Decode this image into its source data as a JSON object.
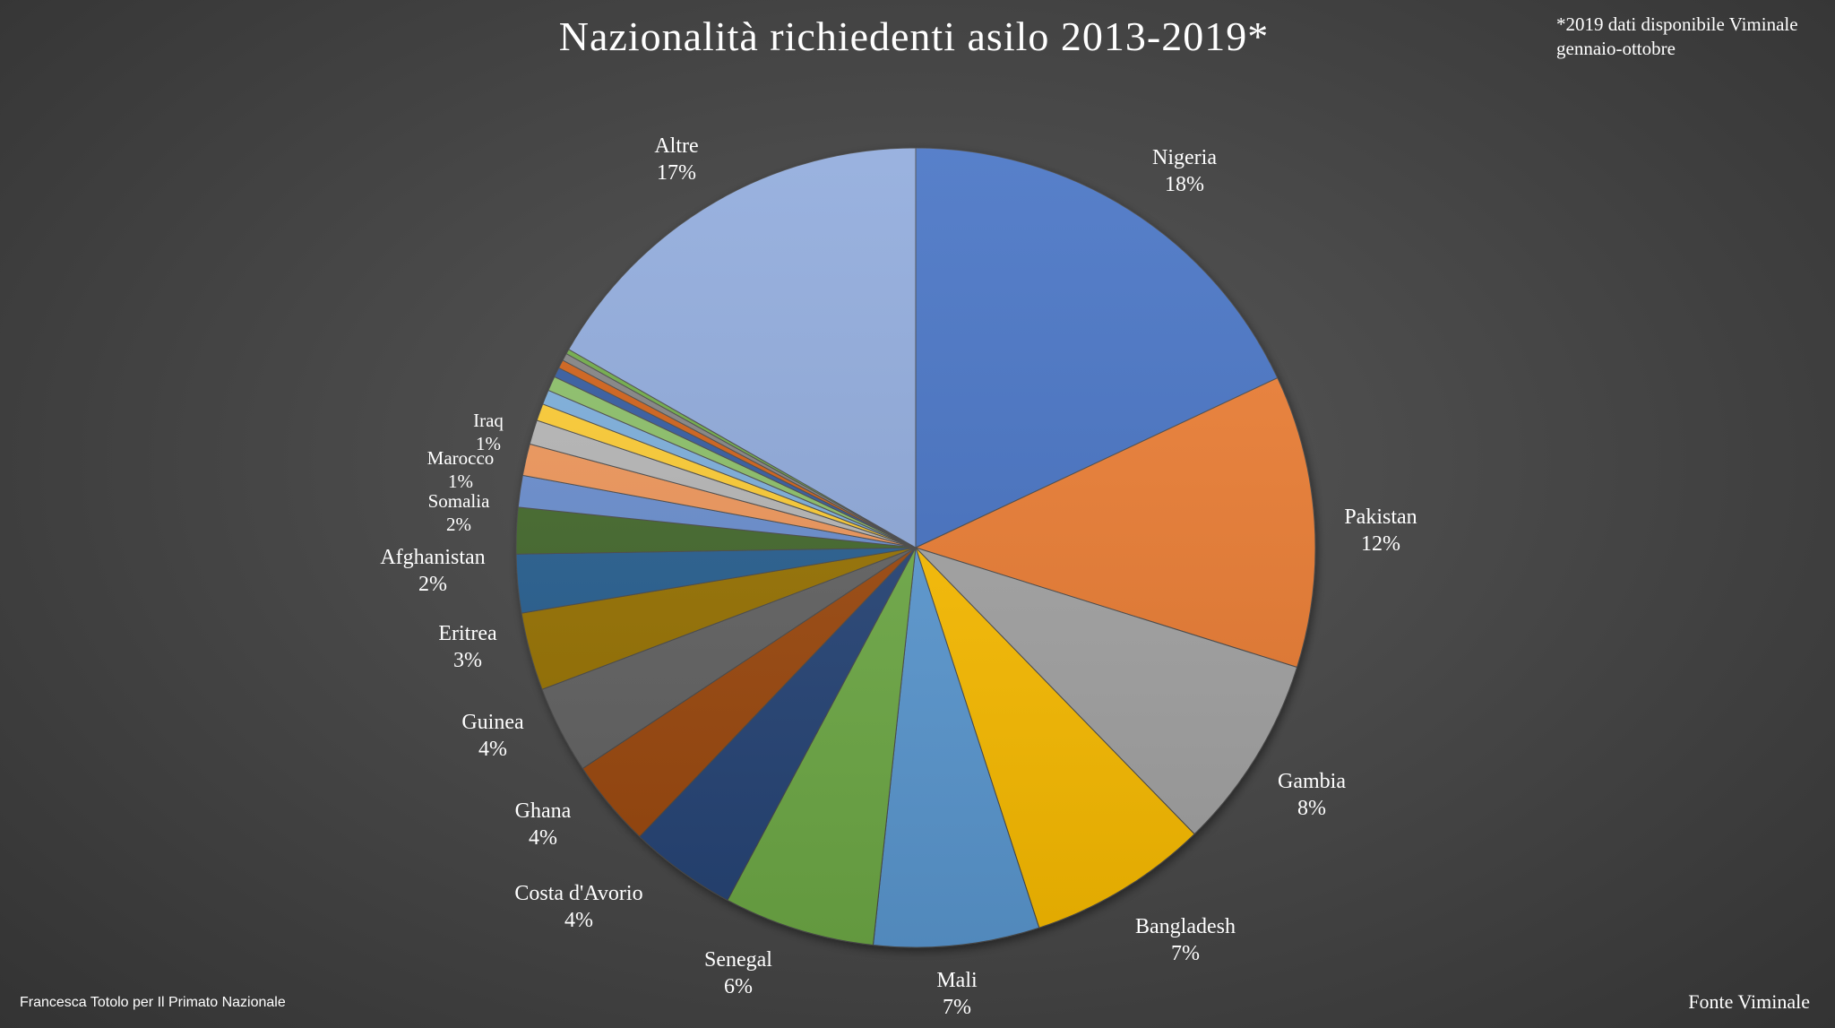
{
  "chart_data": {
    "type": "pie",
    "title": "Nazionalità richiedenti asilo 2013-2019*",
    "note": "*2019 dati disponibile Viminale gennaio-ottobre",
    "author": "Francesca Totolo per Il Primato Nazionale",
    "source": "Fonte Viminale",
    "start_angle_deg": 0,
    "direction": "clockwise",
    "slices": [
      {
        "name": "Nigeria",
        "label": "18%",
        "value": 18.3,
        "color": "#4472C4",
        "labeled": true
      },
      {
        "name": "Pakistan",
        "label": "12%",
        "value": 12.0,
        "color": "#ED7D31",
        "labeled": true
      },
      {
        "name": "Gambia",
        "label": "8%",
        "value": 8.0,
        "color": "#A5A5A5",
        "labeled": true
      },
      {
        "name": "Bangladesh",
        "label": "7%",
        "value": 7.4,
        "color": "#FFC000",
        "labeled": true
      },
      {
        "name": "Mali",
        "label": "7%",
        "value": 6.8,
        "color": "#5B9BD5",
        "labeled": true
      },
      {
        "name": "Senegal",
        "label": "6%",
        "value": 6.2,
        "color": "#70AD47",
        "labeled": true
      },
      {
        "name": "Costa d'Avorio",
        "label": "4%",
        "value": 4.4,
        "color": "#264478",
        "labeled": true
      },
      {
        "name": "Ghana",
        "label": "4%",
        "value": 3.6,
        "color": "#9E480E",
        "labeled": true
      },
      {
        "name": "Guinea",
        "label": "4%",
        "value": 3.6,
        "color": "#636363",
        "labeled": true
      },
      {
        "name": "Eritrea",
        "label": "3%",
        "value": 3.2,
        "color": "#997300",
        "labeled": true
      },
      {
        "name": "Afghanistan",
        "label": "2%",
        "value": 2.4,
        "color": "#255E91",
        "labeled": true
      },
      {
        "name": "Somalia",
        "label": "2%",
        "value": 1.9,
        "color": "#43682B",
        "labeled": true
      },
      {
        "name": "Marocco",
        "label": "1%",
        "value": 1.3,
        "color": "#698ED0",
        "labeled": true
      },
      {
        "name": "Iraq",
        "label": "1%",
        "value": 1.3,
        "color": "#F1975A",
        "labeled": true
      },
      {
        "name": "",
        "label": "",
        "value": 1.0,
        "color": "#B7B7B7",
        "labeled": false
      },
      {
        "name": "",
        "label": "",
        "value": 0.7,
        "color": "#FFCD33",
        "labeled": false
      },
      {
        "name": "",
        "label": "",
        "value": 0.6,
        "color": "#7CAFDD",
        "labeled": false
      },
      {
        "name": "",
        "label": "",
        "value": 0.6,
        "color": "#8CC168",
        "labeled": false
      },
      {
        "name": "",
        "label": "",
        "value": 0.4,
        "color": "#335AA1",
        "labeled": false
      },
      {
        "name": "",
        "label": "",
        "value": 0.35,
        "color": "#D26012",
        "labeled": false
      },
      {
        "name": "",
        "label": "",
        "value": 0.3,
        "color": "#848484",
        "labeled": false
      },
      {
        "name": "",
        "label": "",
        "value": 0.2,
        "color": "#70AD47",
        "labeled": false
      },
      {
        "name": "Altre",
        "label": "17%",
        "value": 17.0,
        "color": "#8FAADC",
        "labeled": true
      }
    ]
  }
}
